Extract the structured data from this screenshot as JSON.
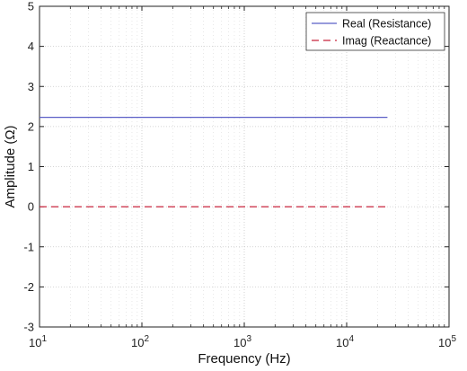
{
  "chart_data": {
    "type": "line",
    "title": "",
    "xlabel": "Frequency (Hz)",
    "ylabel": "Amplitude (Ω)",
    "x_scale": "log",
    "xlim": [
      10,
      100000
    ],
    "ylim": [
      -3,
      5
    ],
    "grid": true,
    "x_ticks": [
      {
        "value": 10,
        "base": "10",
        "exp": "1"
      },
      {
        "value": 100,
        "base": "10",
        "exp": "2"
      },
      {
        "value": 1000,
        "base": "10",
        "exp": "3"
      },
      {
        "value": 10000,
        "base": "10",
        "exp": "4"
      },
      {
        "value": 100000,
        "base": "10",
        "exp": "5"
      }
    ],
    "y_ticks": [
      -3,
      -2,
      -1,
      0,
      1,
      2,
      3,
      4,
      5
    ],
    "legend_position": "top-right",
    "series": [
      {
        "name": "Real (Resistance)",
        "x": [
          10,
          25000
        ],
        "y": [
          2.23,
          2.23
        ],
        "color": "#5b5fc7",
        "style": "solid"
      },
      {
        "name": "Imag (Reactance)",
        "x": [
          10,
          25000
        ],
        "y": [
          0,
          0
        ],
        "color": "#c8243c",
        "style": "dashed"
      }
    ]
  }
}
